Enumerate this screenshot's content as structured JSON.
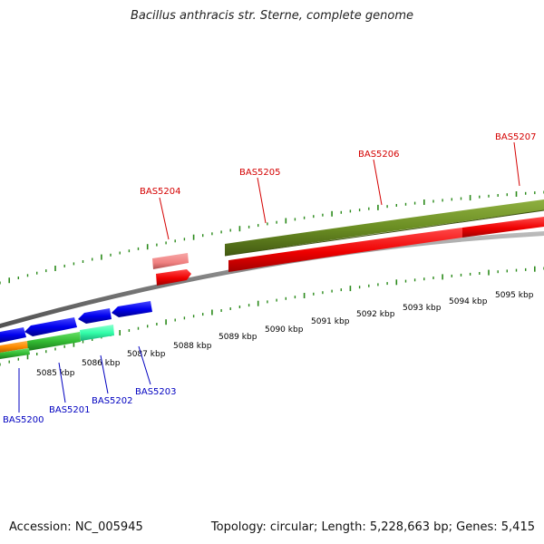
{
  "title": "Bacillus anthracis str. Sterne, complete genome",
  "footer": {
    "accession": "Accession: NC_005945",
    "summary": "Topology: circular; Length: 5,228,663 bp; Genes: 5,415"
  },
  "colors": {
    "backbone": "#808080",
    "tick": "#2a8a1a",
    "forward_label": "#d40000",
    "reverse_label": "#0000c0",
    "scale_text": "#111111"
  },
  "scale_labels": [
    "5085 kbp",
    "5086 kbp",
    "5087 kbp",
    "5088 kbp",
    "5089 kbp",
    "5090 kbp",
    "5091 kbp",
    "5092 kbp",
    "5093 kbp",
    "5094 kbp",
    "5095 kbp"
  ],
  "forward_genes": [
    "BAS5204",
    "BAS5205",
    "BAS5206",
    "BAS5207"
  ],
  "reverse_genes": [
    "BAS5200",
    "BAS5201",
    "BAS5202",
    "BAS5203"
  ],
  "feature_colors": {
    "gene": "#ff0000",
    "pseudo": "#f08080",
    "cds_forward": "#6b8e23",
    "cds_reverse": "#0000ee",
    "cds_green": "#33cc33",
    "cds_cyan": "#33ffaa",
    "cds_orange": "#ff8c00"
  }
}
